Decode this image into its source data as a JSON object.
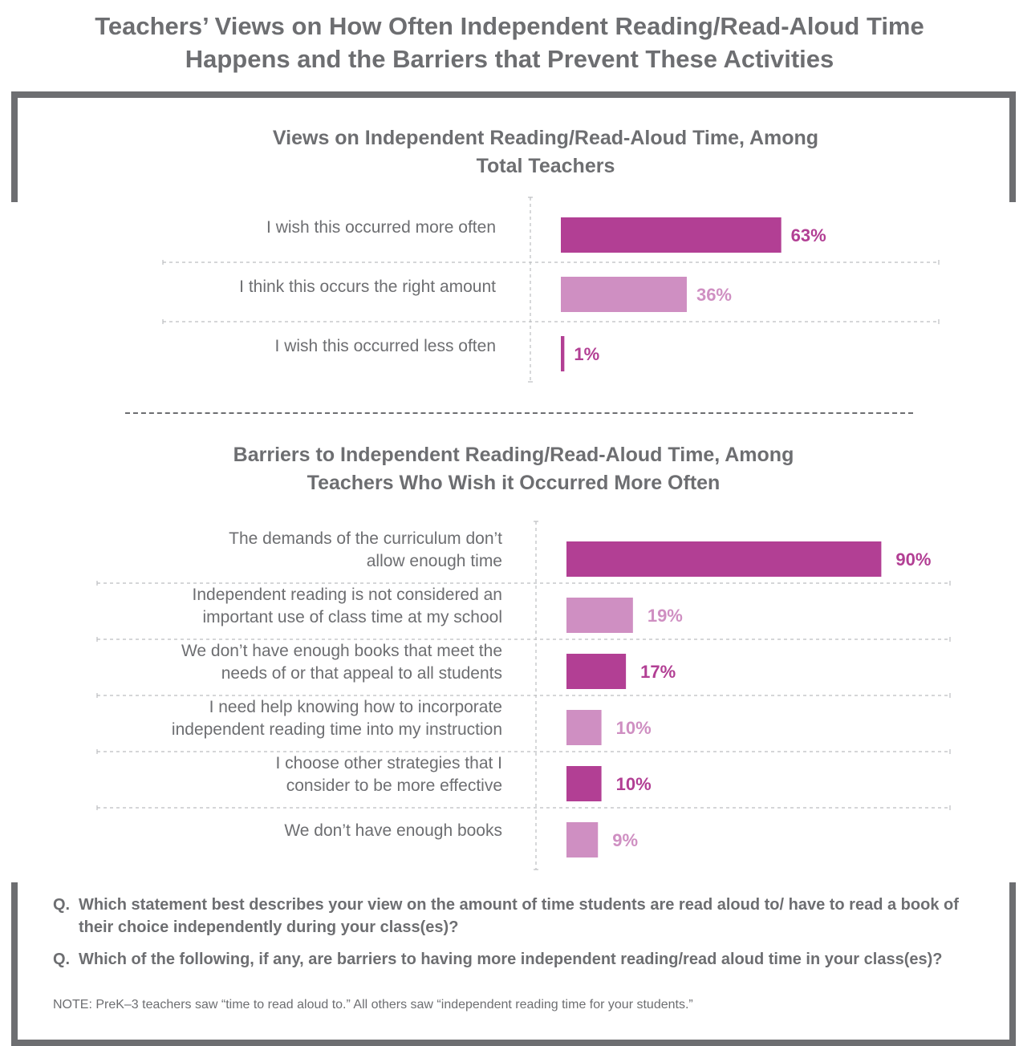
{
  "title": "Teachers’ Views on How Often Independent Reading/Read-Aloud Time Happens and the Barriers that Prevent These Activities",
  "colors": {
    "text": "#6d6e71",
    "dark_magenta": "#b23f94",
    "light_magenta": "#cf8fc2",
    "grid": "#bcbec0"
  },
  "chart_data": [
    {
      "type": "bar",
      "orientation": "horizontal",
      "title": "Views on Independent Reading/Read-Aloud Time, Among Total Teachers",
      "categories": [
        "I wish this occurred more often",
        "I think this occurs the right amount",
        "I wish this occurred less often"
      ],
      "values": [
        63,
        36,
        1
      ],
      "value_labels": [
        "63%",
        "36%",
        "1%"
      ],
      "bar_colors": [
        "#b23f94",
        "#cf8fc2",
        "#b23f94"
      ],
      "unit": "%",
      "xlim": [
        0,
        100
      ]
    },
    {
      "type": "bar",
      "orientation": "horizontal",
      "title": "Barriers to Independent Reading/Read-Aloud Time, Among Teachers Who Wish it Occurred More Often",
      "categories": [
        [
          "The demands of the curriculum don’t",
          "allow enough time"
        ],
        [
          "Independent reading is not considered an",
          "important use of class time at my school"
        ],
        [
          "We don’t have enough books that meet the",
          "needs of or that appeal to all students"
        ],
        [
          "I need help knowing how to incorporate",
          "independent reading time into my instruction"
        ],
        [
          "I choose other strategies that I",
          "consider to be more effective"
        ],
        [
          "We don’t have enough books"
        ]
      ],
      "values": [
        90,
        19,
        17,
        10,
        10,
        9
      ],
      "value_labels": [
        "90%",
        "19%",
        "17%",
        "10%",
        "10%",
        "9%"
      ],
      "bar_colors": [
        "#b23f94",
        "#cf8fc2",
        "#b23f94",
        "#cf8fc2",
        "#b23f94",
        "#cf8fc2"
      ],
      "unit": "%",
      "xlim": [
        0,
        100
      ]
    }
  ],
  "questions": [
    {
      "prefix": "Q.",
      "text": "Which statement best describes your view on the amount of time students are read aloud to/ have to read a book of their choice independently during your class(es)?"
    },
    {
      "prefix": "Q.",
      "text": "Which of the following, if any, are barriers to having more independent reading/read aloud time in your class(es)?"
    }
  ],
  "note": "NOTE: PreK–3 teachers saw “time to read aloud to.” All others saw “independent reading time for your students.”"
}
